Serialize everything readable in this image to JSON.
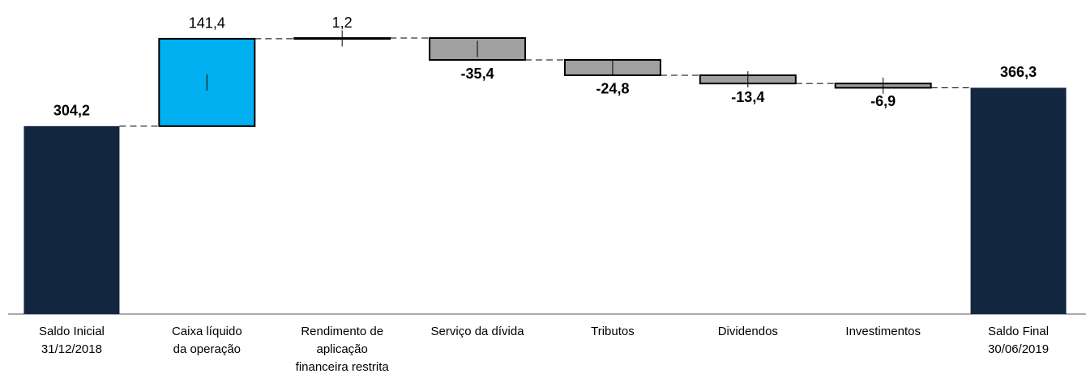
{
  "chart_data": {
    "type": "waterfall",
    "categories": [
      [
        "Saldo Inicial",
        "31/12/2018"
      ],
      [
        "Caixa líquido",
        "da operação"
      ],
      [
        "Rendimento de",
        "aplicação",
        "financeira restrita"
      ],
      [
        "Serviço da dívida"
      ],
      [
        "Tributos"
      ],
      [
        "Dividendos"
      ],
      [
        "Investimentos"
      ],
      [
        "Saldo Final",
        "30/06/2019"
      ]
    ],
    "values": [
      304.2,
      141.4,
      1.2,
      -35.4,
      -24.8,
      -13.4,
      -6.9,
      366.3
    ],
    "value_labels": [
      "304,2",
      "141,4",
      "1,2",
      "-35,4",
      "-24,8",
      "-13,4",
      "-6,9",
      "366,3"
    ],
    "colors": [
      "#12263f",
      "#00b0f0",
      "#00b0f0",
      "#a0a0a0",
      "#a0a0a0",
      "#a0a0a0",
      "#a0a0a0",
      "#12263f"
    ]
  }
}
